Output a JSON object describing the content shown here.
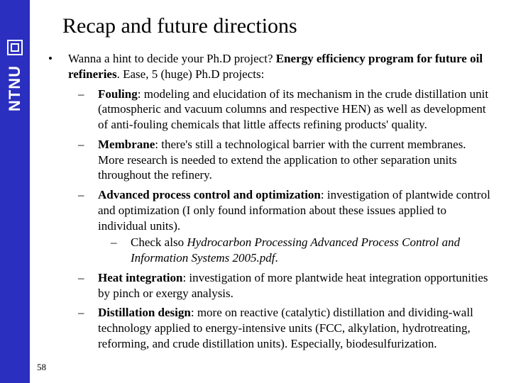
{
  "sidebar": {
    "brand": "NTNU"
  },
  "title": "Recap and future directions",
  "pagenum": "58",
  "l1_pre": "Wanna a hint to decide your Ph.D project? ",
  "l1_bold": "Energy efficiency program for future oil refineries",
  "l1_post": ". Ease, 5 (huge) Ph.D projects:",
  "b1_h": "Fouling",
  "b1_t": ": modeling and elucidation of its mechanism in the crude distillation unit (atmospheric and vacuum columns and respective HEN) as well as development of anti-fouling chemicals that little affects refining products' quality.",
  "b2_h": "Membrane",
  "b2_t": ": there's still a technological barrier with the current membranes. More research is needed to extend the application to other separation units throughout the refinery.",
  "b3_h": "Advanced process control and optimization",
  "b3_t": ": investigation of plantwide control and optimization (I only found information about these issues applied to individual units).",
  "b3s_pre": "Check also ",
  "b3s_it": "Hydrocarbon Processing Advanced Process Control and Information Systems 2005.pdf",
  "b3s_post": ".",
  "b4_h": "Heat integration",
  "b4_t": ": investigation of more plantwide heat integration opportunities by pinch or exergy analysis.",
  "b5_h": "Distillation design",
  "b5_t": ": more on reactive (catalytic) distillation and dividing-wall technology applied to energy-intensive units (FCC, alkylation, hydrotreating, reforming, and crude distillation units). Especially, biodesulfurization."
}
